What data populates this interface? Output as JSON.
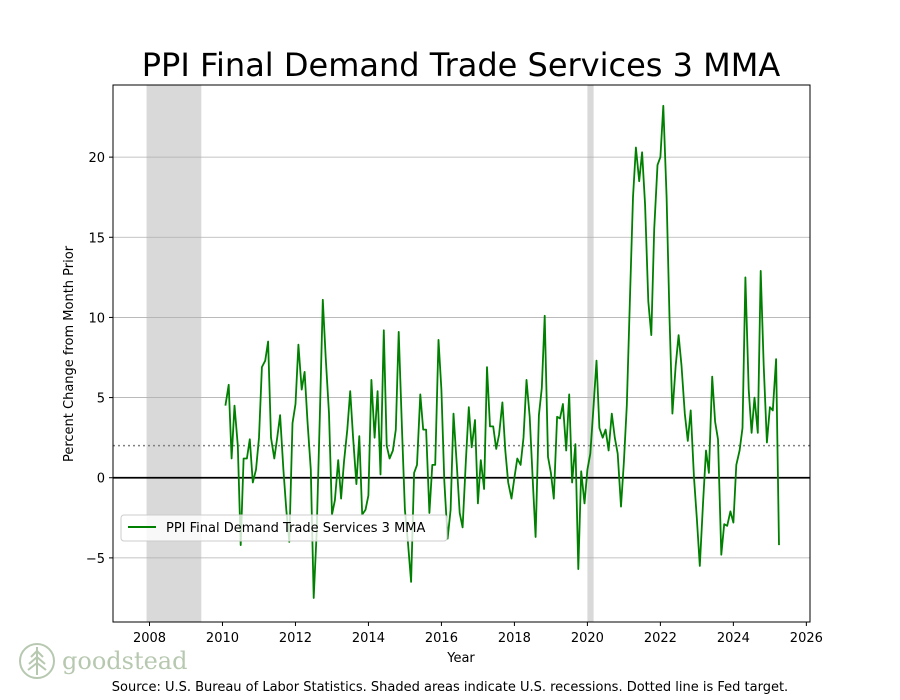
{
  "chart_data": {
    "type": "line",
    "title": "PPI Final Demand Trade Services 3 MMA",
    "xlabel": "Year",
    "ylabel": "Percent Change from Month Prior",
    "xlim": [
      2007,
      2026.1
    ],
    "ylim": [
      -9,
      24.5
    ],
    "x_ticks": [
      2008,
      2010,
      2012,
      2014,
      2016,
      2018,
      2020,
      2022,
      2024,
      2026
    ],
    "y_ticks": [
      -5,
      0,
      5,
      10,
      15,
      20
    ],
    "grid": "horizontal",
    "fed_target": 2,
    "zero_line": 0,
    "recessions": [
      {
        "start": 2007.92,
        "end": 2009.42
      },
      {
        "start": 2020.0,
        "end": 2020.17
      }
    ],
    "legend_position": "lower-left",
    "series": [
      {
        "name": "PPI Final Demand Trade Services 3 MMA",
        "color": "#008000",
        "x": [
          2010.08,
          2010.17,
          2010.25,
          2010.33,
          2010.42,
          2010.5,
          2010.58,
          2010.67,
          2010.75,
          2010.83,
          2010.92,
          2011.0,
          2011.08,
          2011.17,
          2011.25,
          2011.33,
          2011.42,
          2011.5,
          2011.58,
          2011.67,
          2011.75,
          2011.83,
          2011.92,
          2012.0,
          2012.08,
          2012.17,
          2012.25,
          2012.33,
          2012.42,
          2012.5,
          2012.58,
          2012.67,
          2012.75,
          2012.83,
          2012.92,
          2013.0,
          2013.08,
          2013.17,
          2013.25,
          2013.33,
          2013.42,
          2013.5,
          2013.58,
          2013.67,
          2013.75,
          2013.83,
          2013.92,
          2014.0,
          2014.08,
          2014.17,
          2014.25,
          2014.33,
          2014.42,
          2014.5,
          2014.58,
          2014.67,
          2014.75,
          2014.83,
          2014.92,
          2015.0,
          2015.08,
          2015.17,
          2015.25,
          2015.33,
          2015.42,
          2015.5,
          2015.58,
          2015.67,
          2015.75,
          2015.83,
          2015.92,
          2016.0,
          2016.08,
          2016.17,
          2016.25,
          2016.33,
          2016.42,
          2016.5,
          2016.58,
          2016.67,
          2016.75,
          2016.83,
          2016.92,
          2017.0,
          2017.08,
          2017.17,
          2017.25,
          2017.33,
          2017.42,
          2017.5,
          2017.58,
          2017.67,
          2017.75,
          2017.83,
          2017.92,
          2018.0,
          2018.08,
          2018.17,
          2018.25,
          2018.33,
          2018.42,
          2018.5,
          2018.58,
          2018.67,
          2018.75,
          2018.83,
          2018.92,
          2019.0,
          2019.08,
          2019.17,
          2019.25,
          2019.33,
          2019.42,
          2019.5,
          2019.58,
          2019.67,
          2019.75,
          2019.83,
          2019.92,
          2020.0,
          2020.08,
          2020.17,
          2020.25,
          2020.33,
          2020.42,
          2020.5,
          2020.58,
          2020.67,
          2020.75,
          2020.83,
          2020.92,
          2021.0,
          2021.08,
          2021.17,
          2021.25,
          2021.33,
          2021.42,
          2021.5,
          2021.58,
          2021.67,
          2021.75,
          2021.83,
          2021.92,
          2022.0,
          2022.08,
          2022.17,
          2022.25,
          2022.33,
          2022.42,
          2022.5,
          2022.58,
          2022.67,
          2022.75,
          2022.83,
          2022.92,
          2023.0,
          2023.08,
          2023.17,
          2023.25,
          2023.33,
          2023.42,
          2023.5,
          2023.58,
          2023.67,
          2023.75,
          2023.83,
          2023.92,
          2024.0,
          2024.08,
          2024.17,
          2024.25,
          2024.33,
          2024.42,
          2024.5,
          2024.58,
          2024.67,
          2024.75,
          2024.83,
          2024.92,
          2025.0,
          2025.08,
          2025.17,
          2025.25
        ],
        "values": [
          4.5,
          5.8,
          1.2,
          4.5,
          2.0,
          -4.2,
          1.2,
          1.2,
          2.4,
          -0.3,
          0.5,
          2.5,
          6.9,
          7.3,
          8.5,
          2.5,
          1.2,
          2.5,
          3.9,
          0.5,
          -2.0,
          -4.0,
          3.4,
          4.6,
          8.3,
          5.5,
          6.6,
          3.5,
          0.5,
          -7.5,
          -3.5,
          4.0,
          11.1,
          7.5,
          4.0,
          -2.3,
          -1.4,
          1.1,
          -1.3,
          1.0,
          3.0,
          5.4,
          2.5,
          -0.4,
          2.6,
          -2.3,
          -2.0,
          -1.1,
          6.1,
          2.5,
          5.4,
          0.2,
          9.2,
          2.0,
          1.2,
          1.7,
          3.0,
          9.1,
          3.0,
          -2.0,
          -4.0,
          -6.5,
          0.3,
          0.8,
          5.2,
          3.0,
          3.0,
          -2.2,
          0.8,
          0.8,
          8.6,
          5.5,
          -0.2,
          -3.8,
          -2.0,
          4.0,
          0.8,
          -2.2,
          -3.1,
          1.1,
          4.4,
          1.9,
          3.6,
          -1.6,
          1.1,
          -0.7,
          6.9,
          3.2,
          3.2,
          1.8,
          2.7,
          4.7,
          1.7,
          -0.3,
          -1.3,
          0.0,
          1.2,
          0.8,
          2.5,
          6.1,
          3.8,
          -0.1,
          -3.7,
          3.9,
          5.6,
          10.1,
          1.3,
          0.3,
          -1.3,
          3.8,
          3.7,
          4.6,
          1.7,
          5.2,
          -0.3,
          2.1,
          -5.7,
          0.4,
          -1.6,
          0.5,
          1.5,
          4.5,
          7.3,
          3.1,
          2.5,
          3.0,
          1.7,
          4.0,
          2.5,
          1.5,
          -1.8,
          1.0,
          4.5,
          11.5,
          17.5,
          20.6,
          18.5,
          20.3,
          17.0,
          11.0,
          8.9,
          15.5,
          19.5,
          20.0,
          23.2,
          17.5,
          10.0,
          4.0,
          7.0,
          8.9,
          7.0,
          4.0,
          2.3,
          4.2,
          0.0,
          -2.6,
          -5.5,
          -1.5,
          1.7,
          0.3,
          6.3,
          3.5,
          2.4,
          -4.8,
          -2.9,
          -3.0,
          -2.1,
          -2.8,
          0.8,
          1.7,
          3.1,
          12.5,
          5.5,
          2.8,
          5.0,
          2.8,
          12.9,
          7.0,
          2.2,
          4.4,
          4.2,
          7.4,
          -4.2
        ]
      }
    ]
  },
  "source_text": "Source: U.S. Bureau of Labor Statistics. Shaded areas indicate U.S. recessions. Dotted line is Fed target.",
  "logo": {
    "text": "goodstead",
    "color": "#b7c8b0"
  }
}
